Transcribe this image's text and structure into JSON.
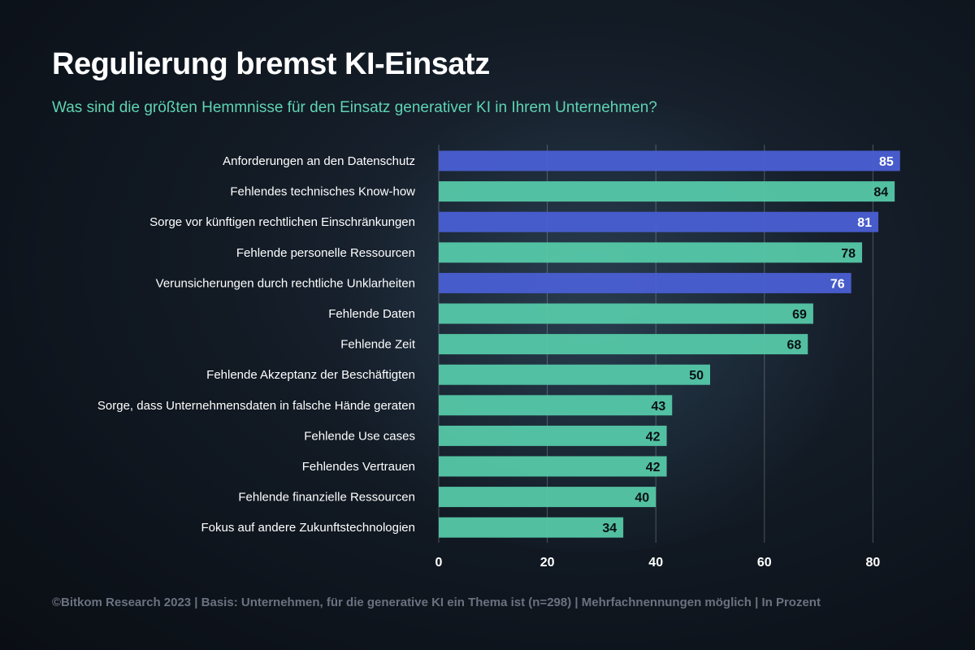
{
  "title": "Regulierung bremst KI-Einsatz",
  "subtitle": "Was sind die größten Hemmnisse für den Einsatz generativer KI in Ihrem Unternehmen?",
  "footer": "©Bitkom Research 2023 | Basis: Unternehmen, für die generative KI ein Thema ist (n=298) | Mehrfachnennungen möglich | In Prozent",
  "colors": {
    "highlight": "#4a5fd3",
    "default": "#55c8a8"
  },
  "chart_data": {
    "type": "bar",
    "orientation": "horizontal",
    "title": "Regulierung bremst KI-Einsatz",
    "xlabel": "",
    "ylabel": "",
    "xlim": [
      0,
      85
    ],
    "xticks": [
      0,
      20,
      40,
      60,
      80
    ],
    "grid": true,
    "categories": [
      "Anforderungen an den Datenschutz",
      "Fehlendes technisches Know-how",
      "Sorge vor künftigen rechtlichen Einschränkungen",
      "Fehlende personelle Ressourcen",
      "Verunsicherungen durch rechtliche Unklarheiten",
      "Fehlende Daten",
      "Fehlende Zeit",
      "Fehlende Akzeptanz der Beschäftigten",
      "Sorge, dass Unternehmensdaten in falsche Hände geraten",
      "Fehlende Use cases",
      "Fehlendes Vertrauen",
      "Fehlende finanzielle Ressourcen",
      "Fokus auf andere Zukunftstechnologien"
    ],
    "values": [
      85,
      84,
      81,
      78,
      76,
      69,
      68,
      50,
      43,
      42,
      42,
      40,
      34
    ],
    "highlighted": [
      true,
      false,
      true,
      false,
      true,
      false,
      false,
      false,
      false,
      false,
      false,
      false,
      false
    ]
  }
}
